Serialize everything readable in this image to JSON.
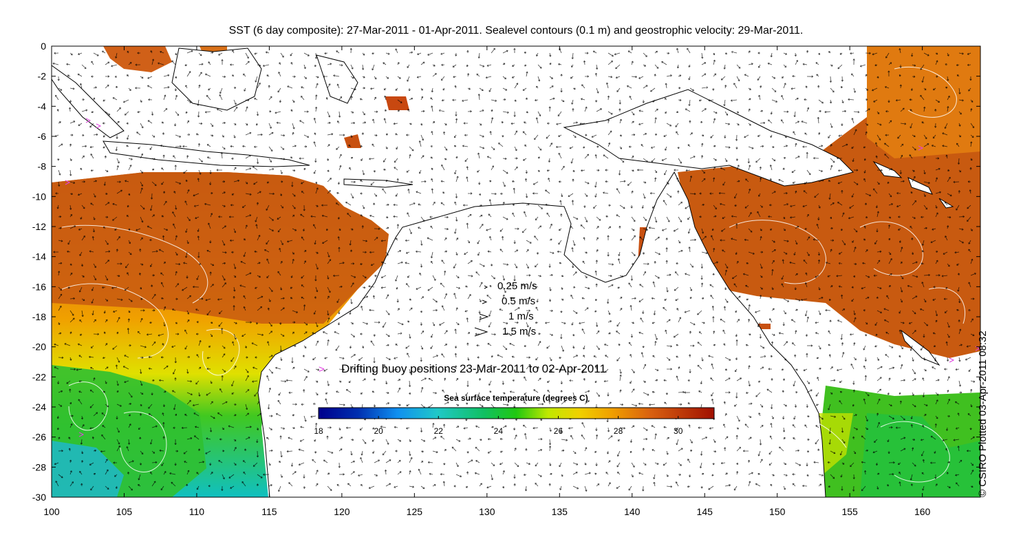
{
  "title": "SST (6 day composite): 27-Mar-2011 - 01-Apr-2011. Sealevel contours (0.1 m) and geostrophic velocity: 29-Mar-2011.",
  "credit": "© CSIRO Plotted 03-Apr-2011 08:32",
  "map": {
    "lon_range": [
      100,
      164
    ],
    "lat_range": [
      -30,
      0
    ],
    "x_ticks": [
      "100",
      "105",
      "110",
      "115",
      "120",
      "125",
      "130",
      "135",
      "140",
      "145",
      "150",
      "155",
      "160"
    ],
    "y_ticks": [
      "0",
      "-2",
      "-4",
      "-6",
      "-8",
      "-10",
      "-12",
      "-14",
      "-16",
      "-18",
      "-20",
      "-22",
      "-24",
      "-26",
      "-28",
      "-30"
    ]
  },
  "velocity_legend": {
    "items": [
      {
        "label": "0.25 m/s",
        "speed": 0.25
      },
      {
        "label": "0.5 m/s",
        "speed": 0.5
      },
      {
        "label": "1 m/s",
        "speed": 1
      },
      {
        "label": "1.5 m/s",
        "speed": 1.5
      }
    ]
  },
  "buoy_legend": {
    "marker": ">",
    "label": "Drifting buoy positions 23-Mar-2011 to 02-Apr-2011",
    "color": "#e040e0"
  },
  "colorbar": {
    "title": "Sea surface temperature (degrees C)",
    "min": 18,
    "max": 31.2,
    "ticks": [
      "18",
      "20",
      "22",
      "24",
      "26",
      "28",
      "30"
    ],
    "colors": [
      "#00008c",
      "#0050d0",
      "#10a8f0",
      "#20c8c0",
      "#10c040",
      "#60d000",
      "#e8e800",
      "#f0b000",
      "#e07810",
      "#c85010",
      "#a01808"
    ]
  },
  "land_color": "#ffffff",
  "coast_color": "#000000",
  "contour_color": "#ffffff"
}
